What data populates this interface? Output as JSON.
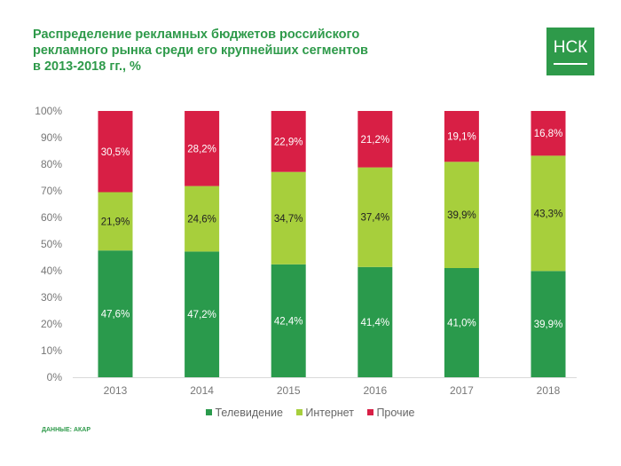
{
  "title_lines": [
    "Распределение рекламных бюджетов российского",
    "рекламного рынка среди его крупнейших сегментов",
    "в 2013-2018 гг., %"
  ],
  "logo_text": "НСК",
  "source": "ДАННЫЕ: АКАР",
  "chart_data": {
    "type": "bar",
    "stacked": true,
    "percent_stacked": true,
    "title": "Распределение рекламных бюджетов российского рекламного рынка среди его крупнейших сегментов в 2013-2018 гг., %",
    "categories": [
      "2013",
      "2014",
      "2015",
      "2016",
      "2017",
      "2018"
    ],
    "series": [
      {
        "name": "Телевидение",
        "color": "#2a9a4c",
        "label_color": "#ffffff",
        "values": [
          47.6,
          47.2,
          42.4,
          41.4,
          41.0,
          39.9
        ],
        "labels": [
          "47,6%",
          "47,2%",
          "42,4%",
          "41,4%",
          "41,0%",
          "39,9%"
        ]
      },
      {
        "name": "Интернет",
        "color": "#a7cf3c",
        "label_color": "#222222",
        "values": [
          21.9,
          24.6,
          34.7,
          37.4,
          39.9,
          43.3
        ],
        "labels": [
          "21,9%",
          "24,6%",
          "34,7%",
          "37,4%",
          "39,9%",
          "43,3%"
        ]
      },
      {
        "name": "Прочие",
        "color": "#d81f45",
        "label_color": "#ffffff",
        "values": [
          30.5,
          28.2,
          22.9,
          21.2,
          19.1,
          16.8
        ],
        "labels": [
          "30,5%",
          "28,2%",
          "22,9%",
          "21,2%",
          "19,1%",
          "16,8%"
        ]
      }
    ],
    "yticks": [
      "0%",
      "10%",
      "20%",
      "30%",
      "40%",
      "50%",
      "60%",
      "70%",
      "80%",
      "90%",
      "100%"
    ],
    "ylim": [
      0,
      100
    ],
    "legend": "bottom",
    "grid": false
  }
}
